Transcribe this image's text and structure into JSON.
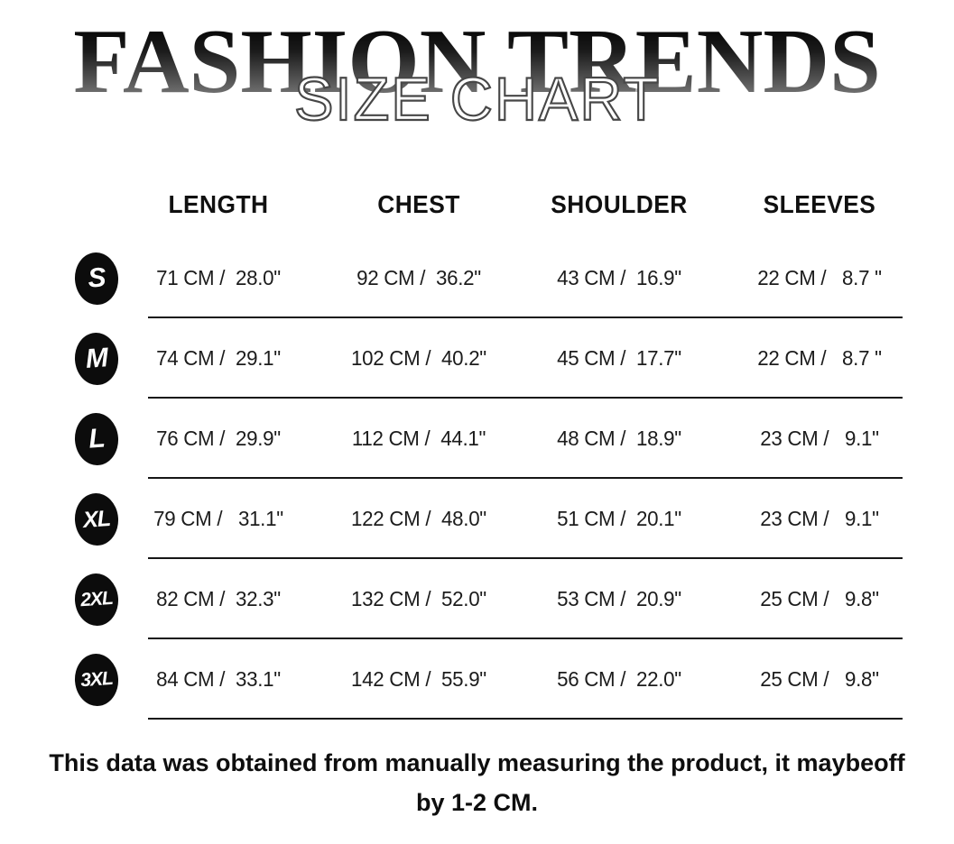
{
  "hero": {
    "brand": "FASHION TRENDS",
    "overlay": "SIZE CHART"
  },
  "table": {
    "columns": [
      "LENGTH",
      "CHEST",
      "SHOULDER",
      "SLEEVES"
    ],
    "rows": [
      {
        "size": "S",
        "length": "71 CM /  28.0\"",
        "chest": "92 CM /  36.2\"",
        "shoulder": "43 CM /  16.9\"",
        "sleeves": "22 CM /   8.7 \""
      },
      {
        "size": "M",
        "length": "74 CM /  29.1\"",
        "chest": "102 CM /  40.2\"",
        "shoulder": "45 CM /  17.7\"",
        "sleeves": "22 CM /   8.7 \""
      },
      {
        "size": "L",
        "length": "76 CM /  29.9\"",
        "chest": "112 CM /  44.1\"",
        "shoulder": "48 CM /  18.9\"",
        "sleeves": "23 CM /   9.1\""
      },
      {
        "size": "XL",
        "length": "79 CM /   31.1\"",
        "chest": "122 CM /  48.0\"",
        "shoulder": "51 CM /  20.1\"",
        "sleeves": "23 CM /   9.1\""
      },
      {
        "size": "2XL",
        "length": "82 CM /  32.3\"",
        "chest": "132 CM /  52.0\"",
        "shoulder": "53 CM /  20.9\"",
        "sleeves": "25 CM /   9.8\""
      },
      {
        "size": "3XL",
        "length": "84 CM /  33.1\"",
        "chest": "142 CM /  55.9\"",
        "shoulder": "56 CM /  22.0\"",
        "sleeves": "25 CM /   9.8\""
      }
    ]
  },
  "footer": {
    "line1": "This data was obtained from manually measuring the product, it maybeoff",
    "line2": "by 1-2 CM."
  },
  "colors": {
    "badge": "#0c0c0c",
    "text": "#1c1c1c",
    "divider": "#161616",
    "title_gradient_top": "#020202",
    "title_gradient_bottom": "#909090"
  }
}
